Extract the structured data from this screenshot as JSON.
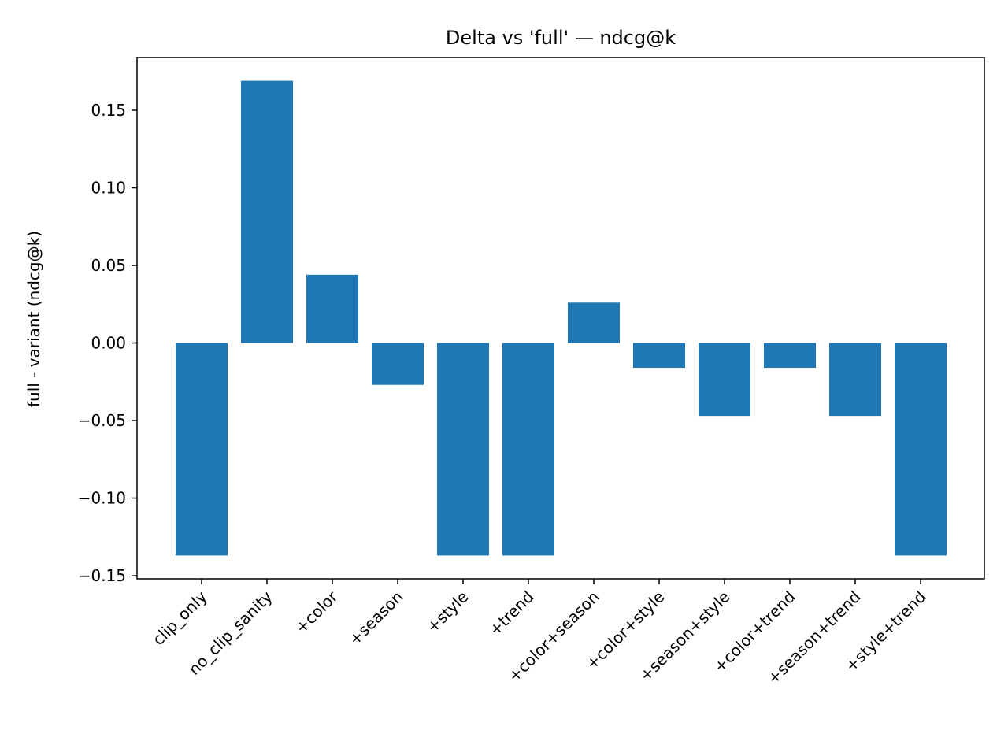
{
  "chart_data": {
    "type": "bar",
    "title": "Delta vs 'full' — ndcg@k",
    "xlabel": "",
    "ylabel": "full - variant (ndcg@k)",
    "categories": [
      "clip_only",
      "no_clip_sanity",
      "+color",
      "+season",
      "+style",
      "+trend",
      "+color+season",
      "+color+style",
      "+season+style",
      "+color+trend",
      "+season+trend",
      "+style+trend"
    ],
    "values": [
      -0.137,
      0.169,
      0.044,
      -0.027,
      -0.137,
      -0.137,
      0.026,
      -0.016,
      -0.047,
      -0.016,
      -0.047,
      -0.137
    ],
    "ylim": [
      -0.152,
      0.184
    ],
    "yticks": [
      -0.15,
      -0.1,
      -0.05,
      0.0,
      0.05,
      0.1,
      0.15
    ],
    "ytick_labels": [
      "−0.15",
      "−0.10",
      "−0.05",
      "0.00",
      "0.05",
      "0.10",
      "0.15"
    ],
    "bar_color": "#1f77b4",
    "grid": false
  }
}
